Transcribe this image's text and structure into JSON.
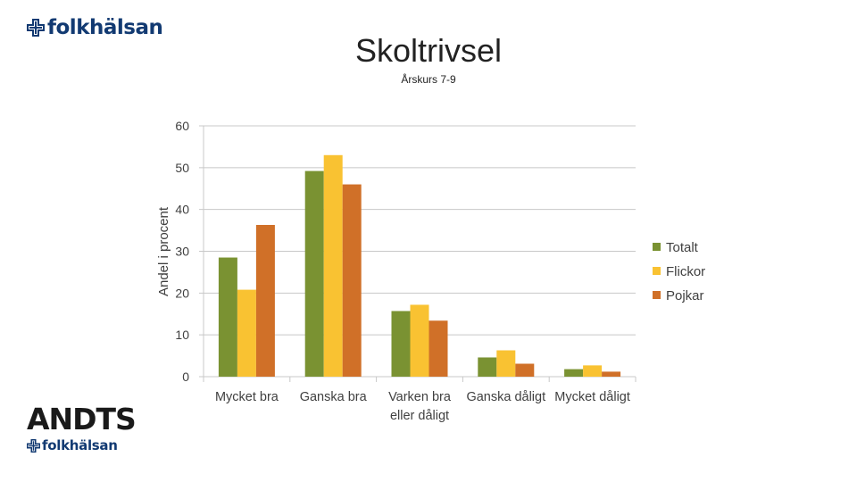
{
  "logo_top": {
    "text": "folkhälsan",
    "icon": "cross-logo-icon",
    "color": "#123a72"
  },
  "logo_bottom": {
    "andts": "ANDTS",
    "text": "folkhälsan",
    "icon": "cross-logo-icon"
  },
  "chart_data": {
    "type": "bar",
    "title": "Skoltrivsel",
    "subtitle": "Årskurs 7-9",
    "ylabel": "Andel i procent",
    "xlabel": "",
    "ylim": [
      0,
      60
    ],
    "yticks": [
      0,
      10,
      20,
      30,
      40,
      50,
      60
    ],
    "grid": true,
    "legend_position": "right",
    "categories": [
      [
        "Mycket bra"
      ],
      [
        "Ganska bra"
      ],
      [
        "Varken bra",
        "eller dåligt"
      ],
      [
        "Ganska dåligt"
      ],
      [
        "Mycket dåligt"
      ]
    ],
    "series": [
      {
        "name": "Totalt",
        "color": "#7a9232",
        "values": [
          28.5,
          49.2,
          15.7,
          4.6,
          1.8
        ]
      },
      {
        "name": "Flickor",
        "color": "#f9c232",
        "values": [
          20.8,
          53.0,
          17.2,
          6.3,
          2.7
        ]
      },
      {
        "name": "Pojkar",
        "color": "#d07028",
        "values": [
          36.3,
          46.0,
          13.4,
          3.1,
          1.2
        ]
      }
    ]
  }
}
